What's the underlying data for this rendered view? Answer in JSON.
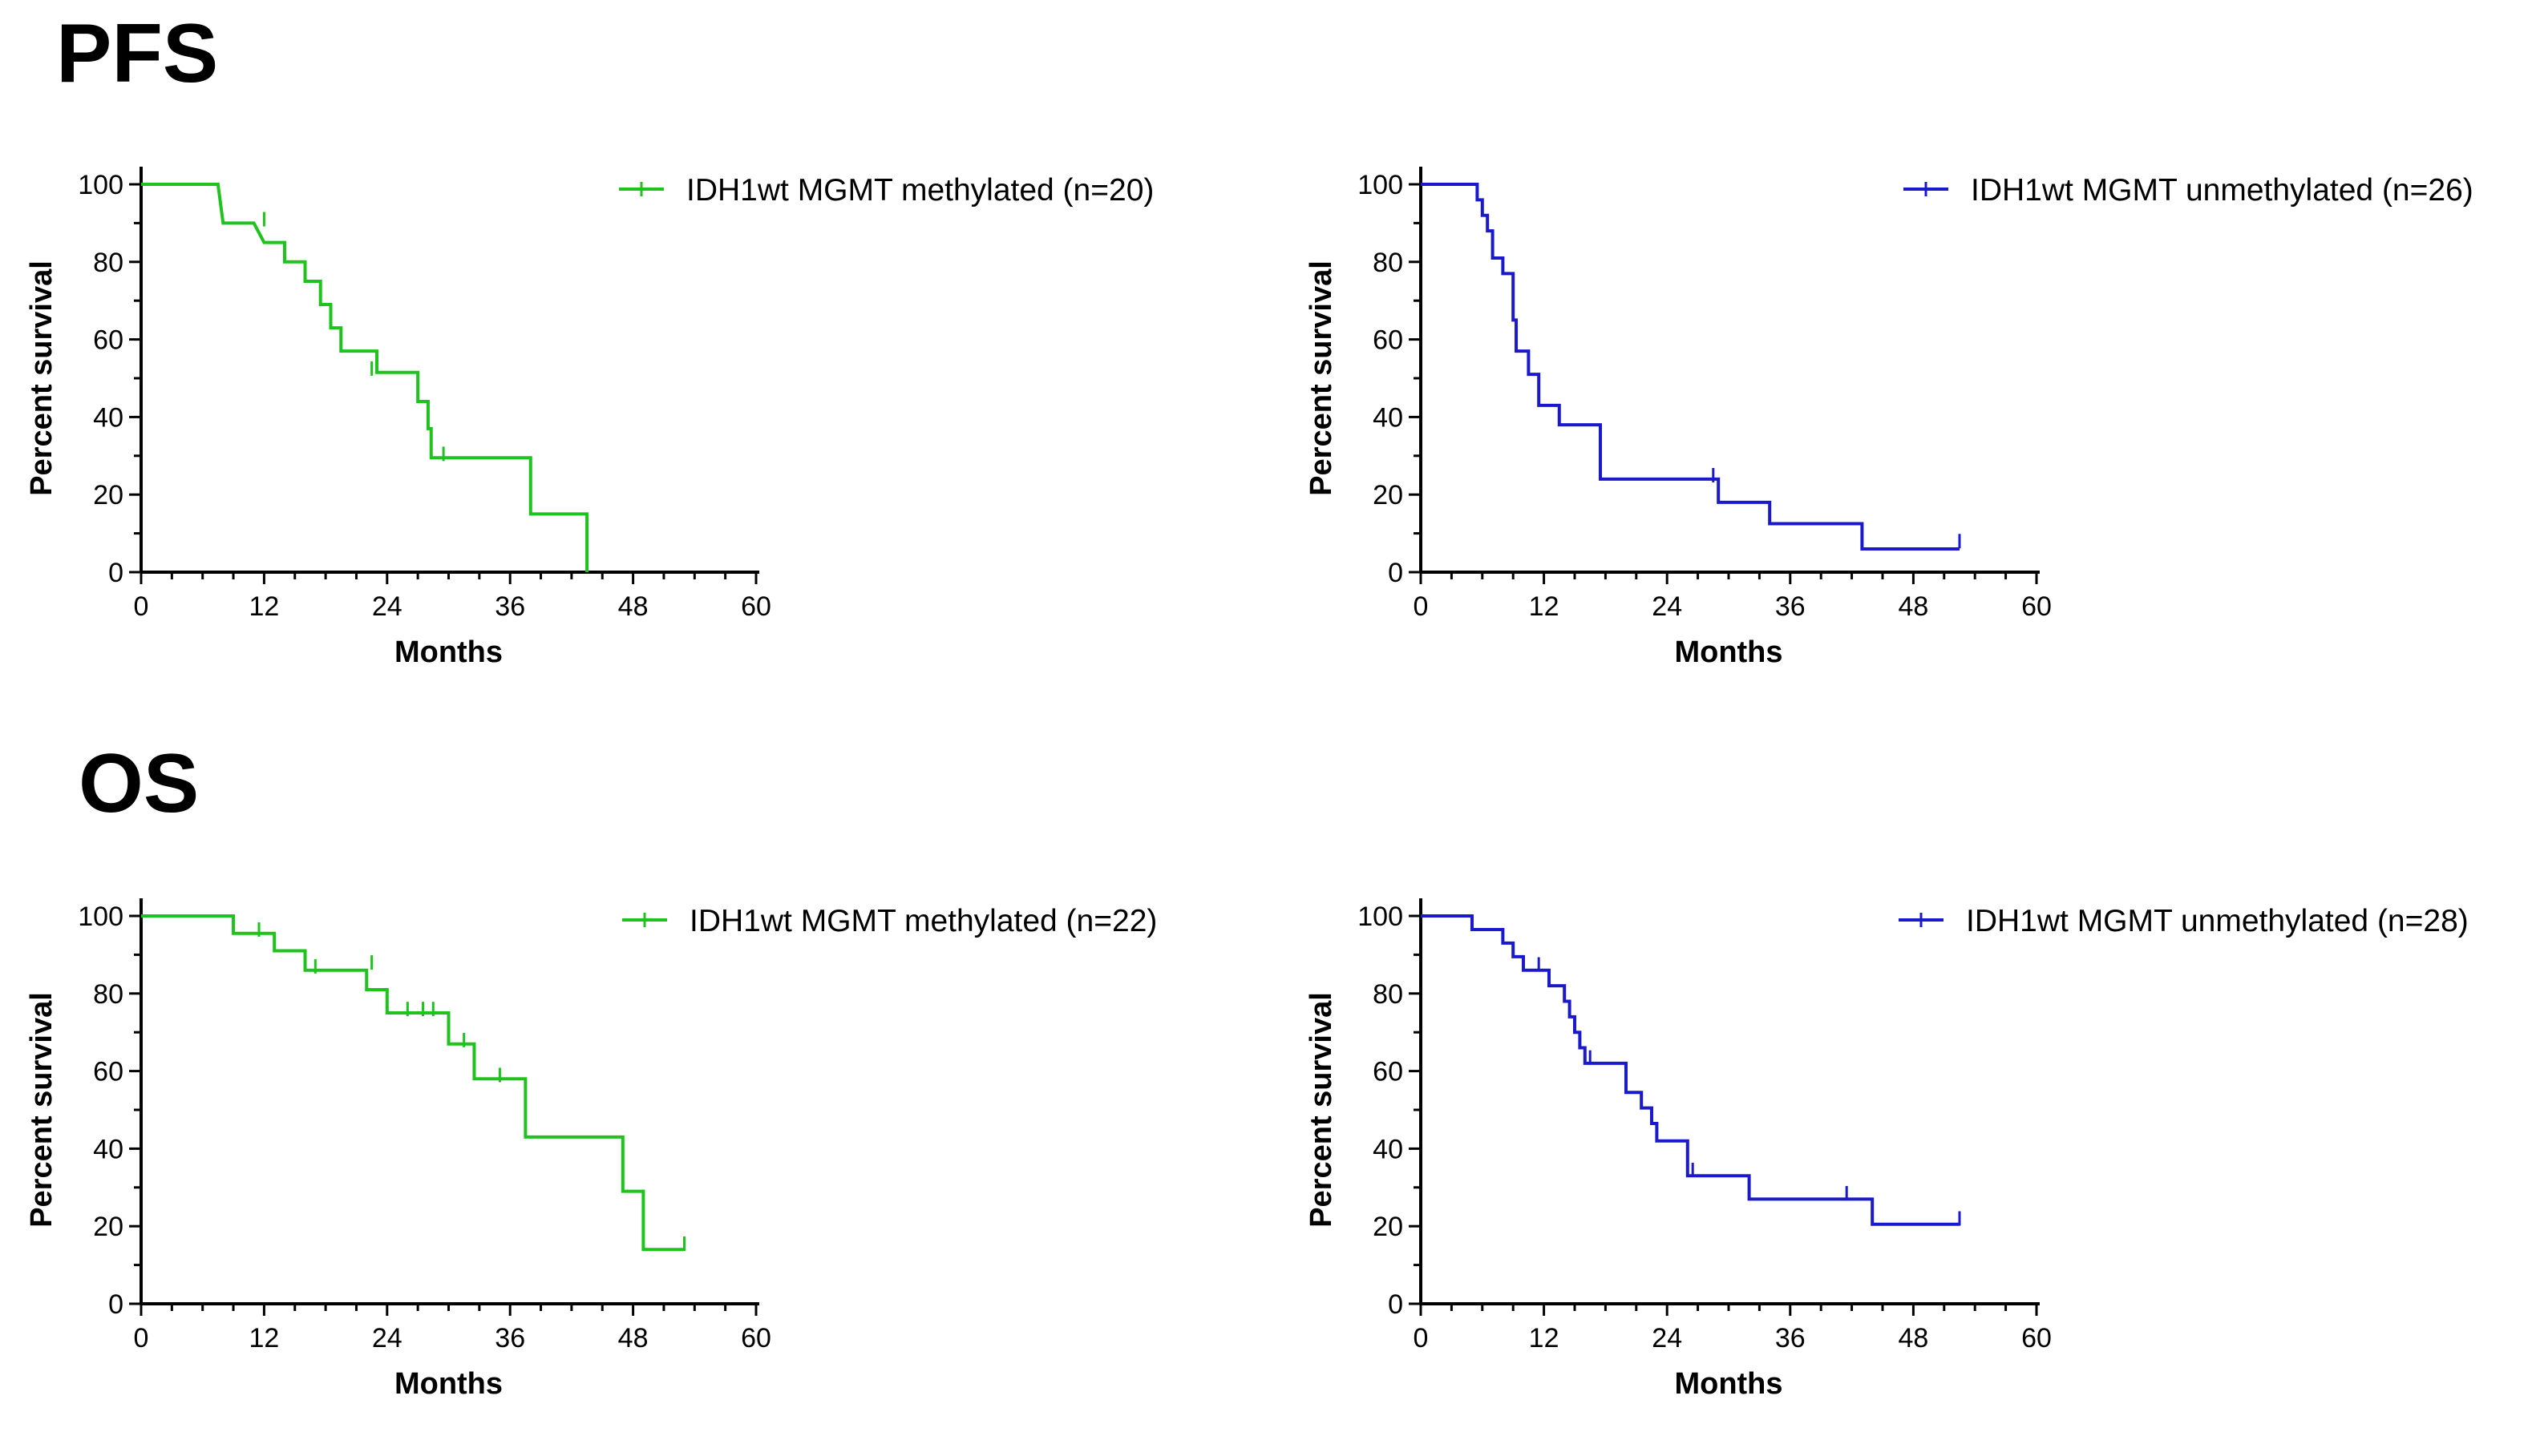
{
  "sections": [
    {
      "title": "PFS"
    },
    {
      "title": "OS"
    }
  ],
  "chart_data": [
    {
      "type": "line",
      "subtype": "kaplan-meier",
      "section": "PFS",
      "xlabel": "Months",
      "ylabel": "Percent survival",
      "xlim": [
        0,
        60
      ],
      "ylim": [
        0,
        100
      ],
      "xticks": [
        0,
        12,
        24,
        36,
        48,
        60
      ],
      "yticks": [
        0,
        20,
        40,
        60,
        80,
        100
      ],
      "legend_position": "top-right",
      "series": [
        {
          "name": "IDH1wt MGMT methylated (n=20)",
          "color": "#1ec31e",
          "steps": [
            [
              0,
              100
            ],
            [
              7.5,
              100
            ],
            [
              8,
              90
            ],
            [
              11,
              90
            ],
            [
              12,
              85
            ],
            [
              14,
              85
            ],
            [
              14,
              80
            ],
            [
              16,
              80
            ],
            [
              16,
              75
            ],
            [
              17.5,
              75
            ],
            [
              17.5,
              69
            ],
            [
              18.5,
              69
            ],
            [
              18.5,
              63
            ],
            [
              19.5,
              63
            ],
            [
              19.5,
              57
            ],
            [
              23,
              57
            ],
            [
              23,
              51.5
            ],
            [
              27,
              51.5
            ],
            [
              27,
              44
            ],
            [
              28,
              44
            ],
            [
              28,
              37
            ],
            [
              28.3,
              37
            ],
            [
              28.3,
              29.5
            ],
            [
              38,
              29.5
            ],
            [
              38,
              15
            ],
            [
              43.5,
              15
            ],
            [
              43.5,
              0
            ]
          ],
          "censored": [
            [
              12,
              91
            ],
            [
              22.5,
              52.5
            ],
            [
              29.5,
              30.5
            ]
          ]
        }
      ]
    },
    {
      "type": "line",
      "subtype": "kaplan-meier",
      "section": "PFS",
      "xlabel": "Months",
      "ylabel": "Percent survival",
      "xlim": [
        0,
        60
      ],
      "ylim": [
        0,
        100
      ],
      "xticks": [
        0,
        12,
        24,
        36,
        48,
        60
      ],
      "yticks": [
        0,
        20,
        40,
        60,
        80,
        100
      ],
      "legend_position": "top-right",
      "series": [
        {
          "name": "IDH1wt MGMT unmethylated (n=26)",
          "color": "#1a1acc",
          "steps": [
            [
              0,
              100
            ],
            [
              5.5,
              100
            ],
            [
              5.5,
              96
            ],
            [
              6,
              96
            ],
            [
              6,
              92
            ],
            [
              6.5,
              92
            ],
            [
              6.5,
              88
            ],
            [
              7,
              88
            ],
            [
              7,
              81
            ],
            [
              8,
              81
            ],
            [
              8,
              77
            ],
            [
              9,
              77
            ],
            [
              9,
              65
            ],
            [
              9.3,
              65
            ],
            [
              9.3,
              57
            ],
            [
              10.5,
              57
            ],
            [
              10.5,
              51
            ],
            [
              11.5,
              51
            ],
            [
              11.5,
              43
            ],
            [
              13.5,
              43
            ],
            [
              13.5,
              38
            ],
            [
              17.5,
              38
            ],
            [
              17.5,
              24
            ],
            [
              29,
              24
            ],
            [
              29,
              18
            ],
            [
              34,
              18
            ],
            [
              34,
              12.5
            ],
            [
              43,
              12.5
            ],
            [
              43,
              6
            ],
            [
              52.5,
              6
            ]
          ],
          "censored": [
            [
              9,
              75
            ],
            [
              28.5,
              25
            ],
            [
              52.5,
              8
            ]
          ]
        }
      ]
    },
    {
      "type": "line",
      "subtype": "kaplan-meier",
      "section": "OS",
      "xlabel": "Months",
      "ylabel": "Percent survival",
      "xlim": [
        0,
        60
      ],
      "ylim": [
        0,
        100
      ],
      "xticks": [
        0,
        12,
        24,
        36,
        48,
        60
      ],
      "yticks": [
        0,
        20,
        40,
        60,
        80,
        100
      ],
      "legend_position": "top-right",
      "series": [
        {
          "name": "IDH1wt MGMT methylated (n=22)",
          "color": "#1ec31e",
          "steps": [
            [
              0,
              100
            ],
            [
              9,
              100
            ],
            [
              9,
              95.5
            ],
            [
              13,
              95.5
            ],
            [
              13,
              91
            ],
            [
              16,
              91
            ],
            [
              16,
              86
            ],
            [
              22,
              86
            ],
            [
              22,
              81
            ],
            [
              24,
              81
            ],
            [
              24,
              75
            ],
            [
              30,
              75
            ],
            [
              30,
              67
            ],
            [
              32.5,
              67
            ],
            [
              32.5,
              58
            ],
            [
              37.5,
              58
            ],
            [
              37.5,
              43
            ],
            [
              47,
              43
            ],
            [
              47,
              29
            ],
            [
              49,
              29
            ],
            [
              49,
              14
            ],
            [
              53,
              14
            ]
          ],
          "censored": [
            [
              11.5,
              96.5
            ],
            [
              17,
              87
            ],
            [
              22.5,
              88
            ],
            [
              26,
              76
            ],
            [
              27.5,
              76
            ],
            [
              28.5,
              76
            ],
            [
              31.5,
              68
            ],
            [
              35,
              59
            ],
            [
              53,
              15.5
            ]
          ]
        }
      ]
    },
    {
      "type": "line",
      "subtype": "kaplan-meier",
      "section": "OS",
      "xlabel": "Months",
      "ylabel": "Percent survival",
      "xlim": [
        0,
        60
      ],
      "ylim": [
        0,
        100
      ],
      "xticks": [
        0,
        12,
        24,
        36,
        48,
        60
      ],
      "yticks": [
        0,
        20,
        40,
        60,
        80,
        100
      ],
      "legend_position": "top-right",
      "series": [
        {
          "name": "IDH1wt MGMT unmethylated (n=28)",
          "color": "#1a1acc",
          "steps": [
            [
              0,
              100
            ],
            [
              5,
              100
            ],
            [
              5,
              96.5
            ],
            [
              8,
              96.5
            ],
            [
              8,
              93
            ],
            [
              9,
              93
            ],
            [
              9,
              89.5
            ],
            [
              10,
              89.5
            ],
            [
              10,
              86
            ],
            [
              12.5,
              86
            ],
            [
              12.5,
              82
            ],
            [
              14,
              82
            ],
            [
              14,
              78
            ],
            [
              14.5,
              78
            ],
            [
              14.5,
              74
            ],
            [
              15,
              74
            ],
            [
              15,
              70
            ],
            [
              15.5,
              70
            ],
            [
              15.5,
              66
            ],
            [
              16,
              66
            ],
            [
              16,
              62
            ],
            [
              20,
              62
            ],
            [
              20,
              54.5
            ],
            [
              21.5,
              54.5
            ],
            [
              21.5,
              50.5
            ],
            [
              22.5,
              50.5
            ],
            [
              22.5,
              46.5
            ],
            [
              23,
              46.5
            ],
            [
              23,
              42
            ],
            [
              26,
              42
            ],
            [
              26,
              33
            ],
            [
              32,
              33
            ],
            [
              32,
              27
            ],
            [
              44,
              27
            ],
            [
              44,
              20.5
            ],
            [
              52.5,
              20.5
            ]
          ],
          "censored": [
            [
              11.5,
              87.5
            ],
            [
              16.5,
              63.5
            ],
            [
              26.5,
              34.5
            ],
            [
              41.5,
              28.5
            ],
            [
              52.5,
              22
            ]
          ]
        }
      ]
    }
  ]
}
